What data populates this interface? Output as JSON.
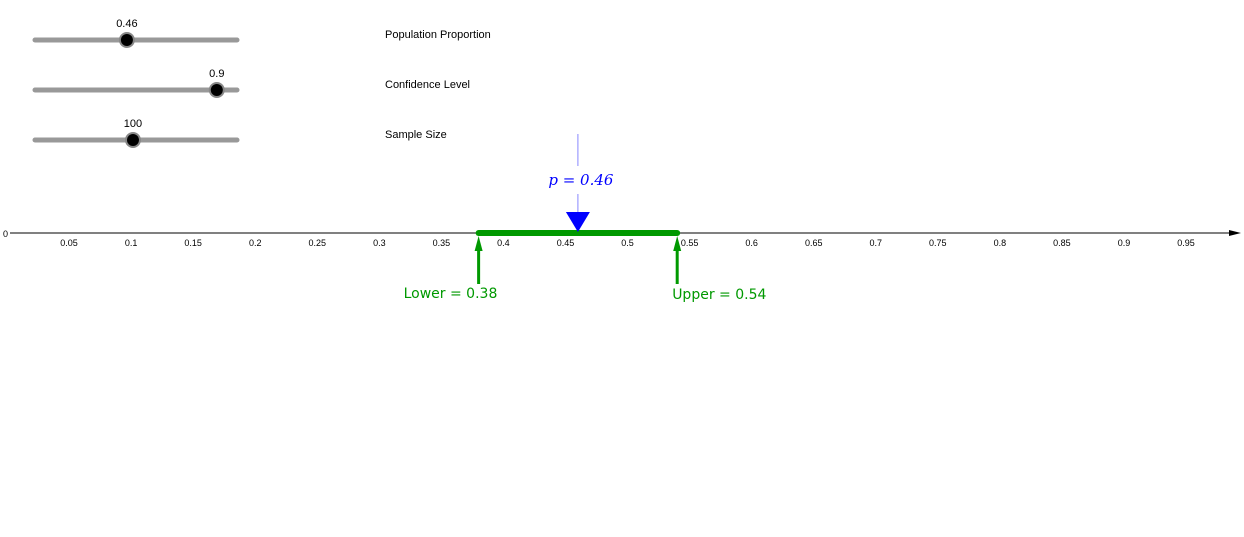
{
  "sliders": [
    {
      "label": "Population Proportion",
      "value": "0.46",
      "position": 0.455
    },
    {
      "label": "Confidence Level",
      "value": "0.9",
      "position": 0.9
    },
    {
      "label": "Sample Size",
      "value": "100",
      "position": 0.485
    }
  ],
  "axis": {
    "origin_label": "0",
    "ticks": [
      "0.05",
      "0.1",
      "0.15",
      "0.2",
      "0.25",
      "0.3",
      "0.35",
      "0.4",
      "0.45",
      "0.5",
      "0.55",
      "0.6",
      "0.65",
      "0.7",
      "0.75",
      "0.8",
      "0.85",
      "0.9",
      "0.95"
    ]
  },
  "interval": {
    "p": 0.46,
    "p_label": "p = 0.46",
    "lower": 0.38,
    "lower_label": "Lower = 0.38",
    "upper": 0.54,
    "upper_label": "Upper = 0.54"
  },
  "colors": {
    "interval": "#009900",
    "p": "#0000ff",
    "slider_track": "#999999"
  }
}
